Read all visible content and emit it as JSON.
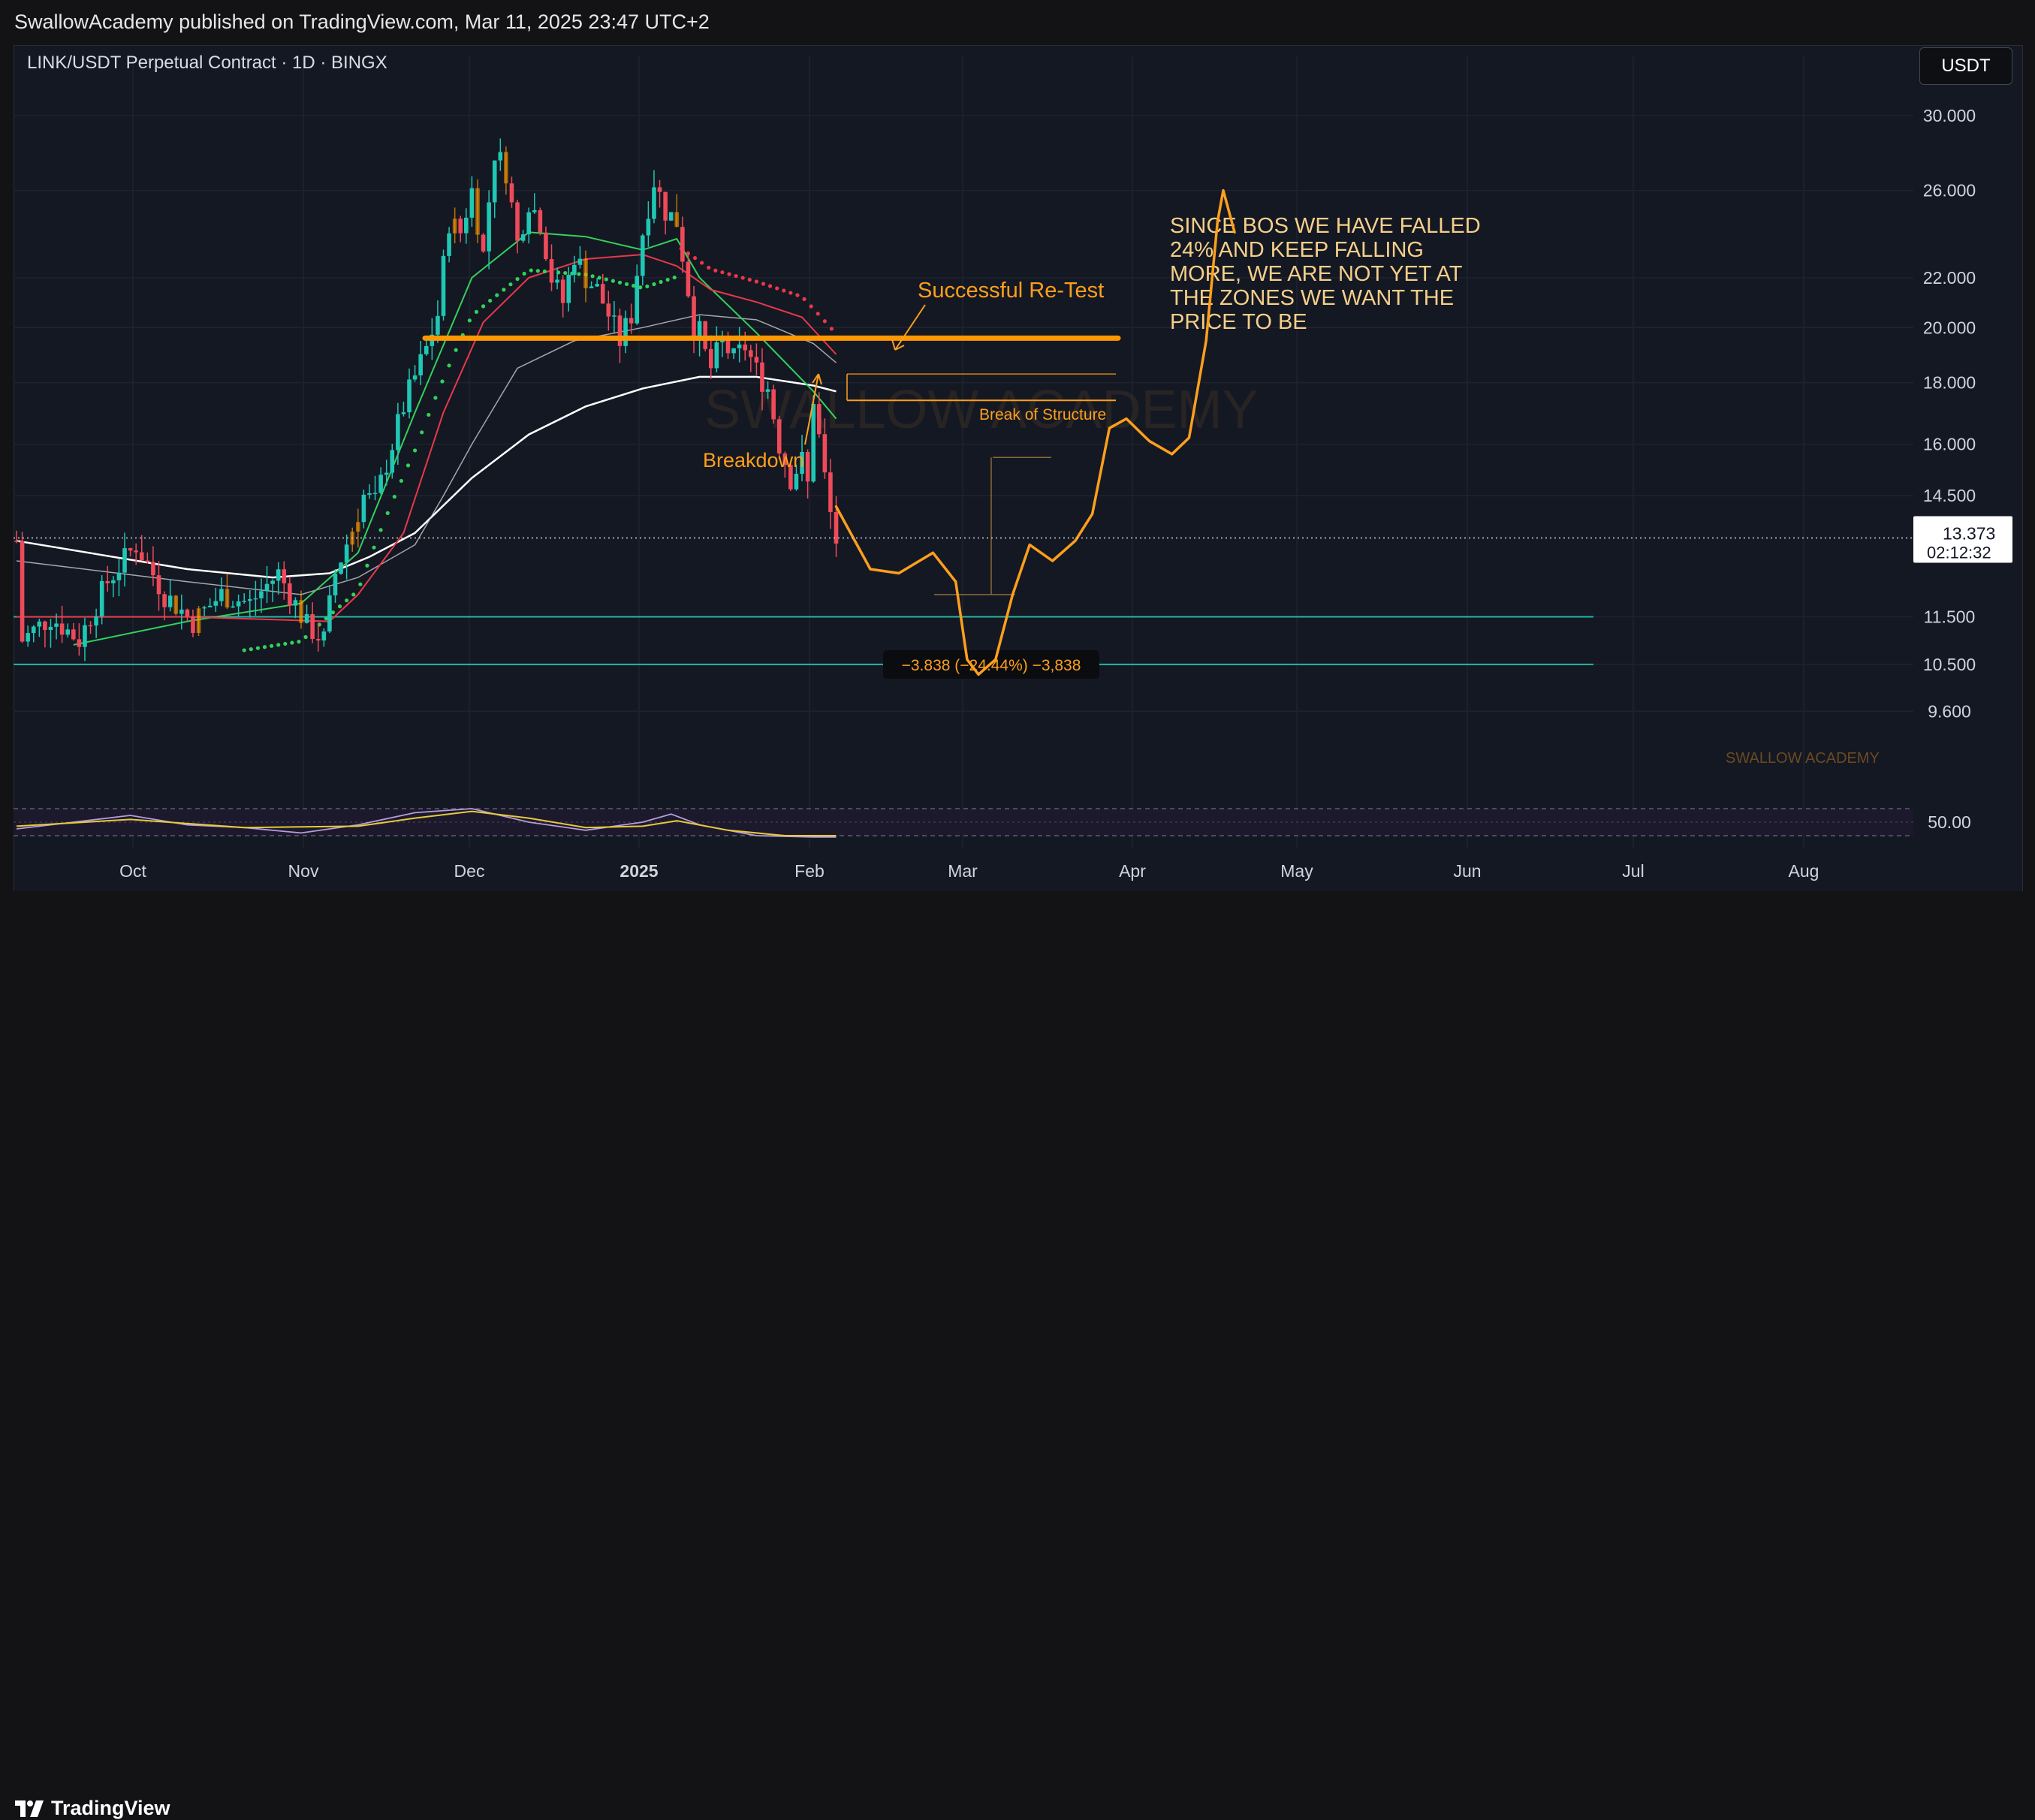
{
  "header": {
    "published_text": "SwallowAcademy published on TradingView.com, Mar 11, 2025 23:47 UTC+2"
  },
  "chart_header": {
    "symbol": "LINK/USDT Perpetual Contract · 1D · BINGX",
    "currency_button": "USDT"
  },
  "footer": {
    "logo_text": "TradingView",
    "logo_icon": "tradingview-logo-icon"
  },
  "colors": {
    "background": "#141823",
    "up_candle": "#1fc7b4",
    "down_candle": "#ef4a5a",
    "highlight_candle": "#ff9800",
    "annotation": "#ff9f1c",
    "support_line": "#25b8a4",
    "ma_green": "#33d15a",
    "ma_red": "#e8384a",
    "ma_white": "#ffffff",
    "rsi_line": "#e7c93a",
    "rsi_fill": "#b39ddb"
  },
  "chart_data": {
    "type": "candlestick",
    "scale": "log",
    "x_ticks": [
      "Oct",
      "Nov",
      "Dec",
      "2025",
      "Feb",
      "Mar",
      "Apr",
      "May",
      "Jun",
      "Jul",
      "Aug"
    ],
    "y_ticks": [
      "30.000",
      "26.000",
      "22.000",
      "20.000",
      "18.000",
      "16.000",
      "14.500",
      "11.500",
      "10.500",
      "9.600"
    ],
    "last_price": "13.373",
    "countdown": "02:12:32",
    "price_path": [
      [
        1,
        11.0
      ],
      [
        6,
        11.5
      ],
      [
        11,
        11.0
      ],
      [
        16,
        12.3
      ],
      [
        21,
        13.2
      ],
      [
        26,
        12.0
      ],
      [
        31,
        11.4
      ],
      [
        36,
        12.0
      ],
      [
        41,
        11.8
      ],
      [
        46,
        12.5
      ],
      [
        51,
        11.3
      ],
      [
        54,
        11.0
      ],
      [
        56,
        12.5
      ],
      [
        59,
        13.6
      ],
      [
        61,
        14.5
      ],
      [
        63,
        14.3
      ],
      [
        66,
        16.0
      ],
      [
        68,
        17.2
      ],
      [
        70,
        18.2
      ],
      [
        72,
        19.2
      ],
      [
        74,
        20.5
      ],
      [
        76,
        24.5
      ],
      [
        78,
        24.0
      ],
      [
        80,
        26.0
      ],
      [
        82,
        23.0
      ],
      [
        84,
        28.0
      ],
      [
        86,
        27.0
      ],
      [
        88,
        23.5
      ],
      [
        90,
        25.5
      ],
      [
        92,
        24.5
      ],
      [
        94,
        22.0
      ],
      [
        96,
        21.0
      ],
      [
        98,
        23.0
      ],
      [
        100,
        22.0
      ],
      [
        102,
        21.5
      ],
      [
        104,
        20.5
      ],
      [
        106,
        19.5
      ],
      [
        108,
        20.5
      ],
      [
        110,
        24.0
      ],
      [
        112,
        26.5
      ],
      [
        114,
        25.0
      ],
      [
        116,
        24.5
      ],
      [
        117,
        23.0
      ],
      [
        118,
        21.5
      ],
      [
        119,
        20.0
      ],
      [
        120,
        19.8
      ],
      [
        121,
        19.0
      ],
      [
        122,
        18.5
      ],
      [
        124,
        19.5
      ],
      [
        126,
        18.8
      ],
      [
        128,
        19.3
      ],
      [
        130,
        18.4
      ],
      [
        132,
        17.8
      ],
      [
        134,
        16.0
      ],
      [
        136,
        15.0
      ],
      [
        138,
        15.5
      ],
      [
        139,
        14.8
      ],
      [
        140,
        17.5
      ],
      [
        141,
        16.2
      ],
      [
        142,
        15.0
      ],
      [
        143,
        14.0
      ],
      [
        144,
        13.3
      ]
    ],
    "moving_averages": {
      "ma_green": [
        [
          10,
          10.9
        ],
        [
          30,
          11.4
        ],
        [
          50,
          11.8
        ],
        [
          60,
          13.0
        ],
        [
          70,
          17.0
        ],
        [
          80,
          22.0
        ],
        [
          90,
          24.0
        ],
        [
          100,
          23.8
        ],
        [
          110,
          23.2
        ],
        [
          116,
          23.7
        ],
        [
          120,
          22.0
        ],
        [
          130,
          19.8
        ],
        [
          140,
          17.7
        ],
        [
          144,
          16.8
        ]
      ],
      "ma_red": [
        [
          0,
          11.5
        ],
        [
          30,
          11.5
        ],
        [
          55,
          11.4
        ],
        [
          60,
          12.0
        ],
        [
          68,
          13.5
        ],
        [
          75,
          17.0
        ],
        [
          82,
          20.2
        ],
        [
          90,
          22.0
        ],
        [
          100,
          22.8
        ],
        [
          110,
          23.0
        ],
        [
          116,
          22.5
        ],
        [
          122,
          21.5
        ],
        [
          130,
          21.0
        ],
        [
          138,
          20.4
        ],
        [
          144,
          19.0
        ]
      ],
      "ma_white_thin": [
        [
          0,
          12.8
        ],
        [
          30,
          12.3
        ],
        [
          50,
          12.0
        ],
        [
          60,
          12.4
        ],
        [
          70,
          13.2
        ],
        [
          75,
          14.5
        ],
        [
          80,
          16.0
        ],
        [
          88,
          18.5
        ],
        [
          98,
          19.5
        ],
        [
          110,
          20.0
        ],
        [
          120,
          20.5
        ],
        [
          130,
          20.3
        ],
        [
          140,
          19.4
        ],
        [
          144,
          18.7
        ]
      ],
      "ma_white_thick": [
        [
          0,
          13.3
        ],
        [
          30,
          12.6
        ],
        [
          45,
          12.4
        ],
        [
          55,
          12.5
        ],
        [
          62,
          12.9
        ],
        [
          70,
          13.5
        ],
        [
          80,
          15.0
        ],
        [
          90,
          16.3
        ],
        [
          100,
          17.2
        ],
        [
          110,
          17.8
        ],
        [
          120,
          18.2
        ],
        [
          130,
          18.2
        ],
        [
          140,
          17.9
        ],
        [
          144,
          17.7
        ]
      ]
    },
    "levels": [
      {
        "name": "resistance",
        "value": 19.6
      },
      {
        "name": "support-upper",
        "value": 11.5
      },
      {
        "name": "support-lower",
        "value": 10.5
      }
    ],
    "projection_path": [
      [
        144,
        14.2
      ],
      [
        150,
        12.6
      ],
      [
        155,
        12.5
      ],
      [
        161,
        13.0
      ],
      [
        165,
        12.3
      ],
      [
        167,
        10.6
      ],
      [
        169,
        10.3
      ],
      [
        172,
        10.6
      ],
      [
        175,
        12.0
      ],
      [
        178,
        13.2
      ],
      [
        182,
        12.8
      ],
      [
        186,
        13.3
      ],
      [
        189,
        14.0
      ],
      [
        192,
        16.5
      ],
      [
        195,
        16.8
      ],
      [
        199,
        16.1
      ],
      [
        203,
        15.7
      ],
      [
        206,
        16.2
      ],
      [
        209,
        19.5
      ],
      [
        211,
        24.5
      ],
      [
        212,
        26.0
      ],
      [
        214,
        24.0
      ]
    ],
    "annotations": {
      "retest": "Successful Re-Test",
      "bos": "Break of Structure",
      "breakdown": "Breakdown",
      "note_lines": [
        "SINCE BOS WE HAVE FALLED",
        "24% AND KEEP FALLING",
        "MORE, WE ARE NOT YET AT",
        "THE ZONES WE WANT THE",
        "PRICE TO BE"
      ],
      "measure": "−3.838 (−24.44%) −3,838",
      "watermark": "SWALLOW ACADEMY",
      "corner_watermark": "SWALLOW ACADEMY"
    },
    "rsi": {
      "label": "50.00",
      "values": [
        [
          0,
          45
        ],
        [
          10,
          50
        ],
        [
          20,
          55
        ],
        [
          30,
          48
        ],
        [
          40,
          46
        ],
        [
          50,
          42
        ],
        [
          60,
          48
        ],
        [
          70,
          57
        ],
        [
          80,
          60
        ],
        [
          90,
          50
        ],
        [
          100,
          44
        ],
        [
          110,
          50
        ],
        [
          115,
          56
        ],
        [
          120,
          48
        ],
        [
          130,
          40
        ],
        [
          140,
          39
        ],
        [
          144,
          39
        ]
      ],
      "signal": [
        [
          0,
          47
        ],
        [
          20,
          52
        ],
        [
          40,
          46
        ],
        [
          60,
          47
        ],
        [
          70,
          53
        ],
        [
          80,
          58
        ],
        [
          90,
          53
        ],
        [
          100,
          46
        ],
        [
          110,
          47
        ],
        [
          116,
          51
        ],
        [
          125,
          44
        ],
        [
          135,
          40
        ],
        [
          144,
          40
        ]
      ]
    }
  }
}
